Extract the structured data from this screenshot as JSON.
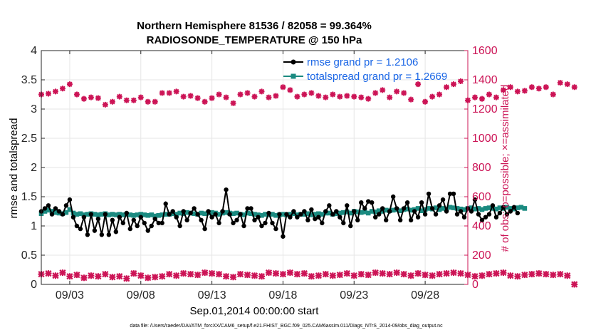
{
  "chart_data": {
    "type": "line",
    "title": "Northern Hemisphere 81536 / 82058 = 99.364%",
    "subtitle": "RADIOSONDE_TEMPERATURE @ 150 hPa",
    "xlabel": "Sep.01,2014 00:00:00 start",
    "ylabel_left": "rmse and totalspread",
    "ylabel_right": "# of obs: o=possible; ×=assimilated",
    "xlim": [
      1.0,
      31.0
    ],
    "ylim_left": [
      0,
      4
    ],
    "ylim_right": [
      0,
      1600
    ],
    "x_ticks": [
      3,
      8,
      13,
      18,
      23,
      28
    ],
    "x_tick_labels": [
      "09/03",
      "09/08",
      "09/13",
      "09/18",
      "09/23",
      "09/28"
    ],
    "y_left_ticks": [
      "0",
      "0.5",
      "1",
      "1.5",
      "2",
      "2.5",
      "3",
      "3.5",
      "4"
    ],
    "y_right_ticks": [
      "0",
      "200",
      "400",
      "600",
      "800",
      "1000",
      "1200",
      "1400",
      "1600"
    ],
    "series": [
      {
        "name": "rmse grand pr = 1.2106",
        "axis": "left",
        "color": "#000000",
        "x_start": 1.0,
        "x_step": 0.25,
        "values": [
          1.25,
          1.3,
          1.35,
          1.2,
          1.3,
          1.25,
          1.2,
          1.35,
          1.45,
          1.15,
          1.0,
          0.95,
          1.15,
          0.85,
          1.2,
          0.92,
          1.12,
          0.85,
          1.2,
          0.85,
          1.1,
          0.9,
          1.15,
          1.05,
          1.22,
          0.95,
          1.1,
          1.0,
          1.15,
          1.05,
          0.92,
          1.0,
          1.12,
          1.05,
          1.05,
          1.38,
          1.2,
          1.25,
          1.15,
          1.0,
          1.25,
          1.1,
          1.22,
          1.3,
          1.2,
          1.1,
          0.95,
          1.25,
          1.15,
          1.2,
          1.05,
          1.25,
          1.62,
          1.2,
          1.05,
          1.1,
          1.2,
          1.0,
          1.3,
          1.3,
          1.1,
          1.15,
          1.0,
          1.05,
          1.22,
          1.05,
          0.95,
          1.2,
          0.82,
          1.2,
          1.15,
          1.25,
          1.15,
          1.2,
          1.25,
          1.1,
          1.28,
          1.12,
          1.15,
          1.05,
          1.25,
          1.35,
          1.2,
          1.25,
          1.15,
          1.05,
          1.35,
          1.0,
          1.25,
          1.1,
          1.4,
          1.3,
          1.42,
          1.4,
          1.15,
          1.2,
          1.3,
          1.1,
          1.25,
          1.5,
          1.3,
          1.1,
          1.3,
          1.4,
          1.1,
          1.25,
          1.15,
          1.4,
          1.2,
          1.55,
          1.3,
          1.2,
          1.35,
          1.45,
          1.25,
          1.55,
          1.55,
          1.2,
          1.25,
          1.15,
          1.3,
          1.25,
          1.45,
          1.2,
          1.1,
          1.15,
          1.2,
          1.35,
          1.15,
          1.22,
          1.32,
          1.2,
          1.25,
          1.32,
          1.22
        ]
      },
      {
        "name": "totalspread grand pr = 1.2669",
        "axis": "left",
        "color": "#1a8a80",
        "x_start": 1.0,
        "x_step": 0.25,
        "values": [
          1.21,
          1.25,
          1.27,
          1.25,
          1.23,
          1.22,
          1.21,
          1.23,
          1.28,
          1.22,
          1.2,
          1.21,
          1.19,
          1.2,
          1.21,
          1.2,
          1.19,
          1.2,
          1.21,
          1.19,
          1.2,
          1.19,
          1.2,
          1.19,
          1.2,
          1.19,
          1.18,
          1.19,
          1.2,
          1.19,
          1.18,
          1.19,
          1.17,
          1.18,
          1.19,
          1.2,
          1.2,
          1.21,
          1.2,
          1.22,
          1.21,
          1.23,
          1.22,
          1.21,
          1.2,
          1.22,
          1.21,
          1.22,
          1.23,
          1.22,
          1.2,
          1.22,
          1.23,
          1.22,
          1.21,
          1.22,
          1.2,
          1.19,
          1.22,
          1.21,
          1.2,
          1.19,
          1.18,
          1.2,
          1.19,
          1.2,
          1.18,
          1.19,
          1.2,
          1.19,
          1.2,
          1.21,
          1.19,
          1.2,
          1.2,
          1.21,
          1.19,
          1.2,
          1.21,
          1.2,
          1.22,
          1.22,
          1.2,
          1.21,
          1.22,
          1.23,
          1.24,
          1.22,
          1.25,
          1.24,
          1.23,
          1.24,
          1.22,
          1.25,
          1.24,
          1.26,
          1.25,
          1.27,
          1.26,
          1.27,
          1.28,
          1.26,
          1.28,
          1.29,
          1.27,
          1.28,
          1.3,
          1.26,
          1.28,
          1.3,
          1.29,
          1.31,
          1.28,
          1.3,
          1.29,
          1.32,
          1.31,
          1.3,
          1.29,
          1.28,
          1.3,
          1.31,
          1.29,
          1.3,
          1.28,
          1.3,
          1.31,
          1.3,
          1.29,
          1.31,
          1.3,
          1.32,
          1.3,
          1.29,
          1.31,
          1.32,
          1.3
        ]
      },
      {
        "name": "# of obs possible",
        "axis": "right",
        "color": "#cc1456",
        "x_start": 1.0,
        "x_step": 0.5,
        "values": [
          1300,
          1305,
          1320,
          1340,
          1370,
          1300,
          1270,
          1280,
          1275,
          1230,
          1250,
          1285,
          1260,
          1260,
          1280,
          1250,
          1250,
          1310,
          1310,
          1320,
          1285,
          1290,
          1275,
          1250,
          1275,
          1300,
          1280,
          1240,
          1300,
          1310,
          1285,
          1320,
          1280,
          1290,
          1350,
          1330,
          1285,
          1300,
          1310,
          1290,
          1280,
          1300,
          1285,
          1290,
          1285,
          1280,
          1270,
          1310,
          1330,
          1280,
          1320,
          1310,
          1265,
          1370,
          1250,
          1285,
          1300,
          1350,
          1370,
          1390,
          1260,
          1280,
          1270,
          1300,
          1280,
          1330,
          1350,
          1320,
          1325,
          1350,
          1340,
          1350,
          1300,
          1380,
          1370,
          1350
        ]
      },
      {
        "name": "# of obs assimilated",
        "axis": "right",
        "color": "#cc1456",
        "x_start": 1.0,
        "x_step": 0.5,
        "values": [
          70,
          75,
          60,
          80,
          55,
          65,
          45,
          60,
          55,
          70,
          50,
          55,
          40,
          75,
          60,
          45,
          50,
          55,
          70,
          60,
          75,
          70,
          65,
          80,
          75,
          70,
          55,
          50,
          70,
          65,
          60,
          55,
          80,
          75,
          70,
          80,
          70,
          75,
          55,
          60,
          70,
          60,
          65,
          75,
          60,
          70,
          65,
          80,
          75,
          70,
          80,
          70,
          60,
          75,
          65,
          60,
          70,
          75,
          80,
          75,
          65,
          55,
          60,
          70,
          75,
          80,
          60,
          55,
          65,
          70,
          75,
          70,
          65,
          70,
          60,
          0
        ]
      }
    ],
    "legend": {
      "entries": [
        "rmse grand pr = 1.2106",
        "totalspread grand pr = 1.2669"
      ],
      "placement": "top-right"
    }
  },
  "footer": "data file: /Users/raeder/DAI/ATM_forcXX/CAM6_setup/f.e21.FHIST_BGC.f09_025.CAM6assim.011/Diags_NTrS_2014-09/obs_diag_output.nc"
}
